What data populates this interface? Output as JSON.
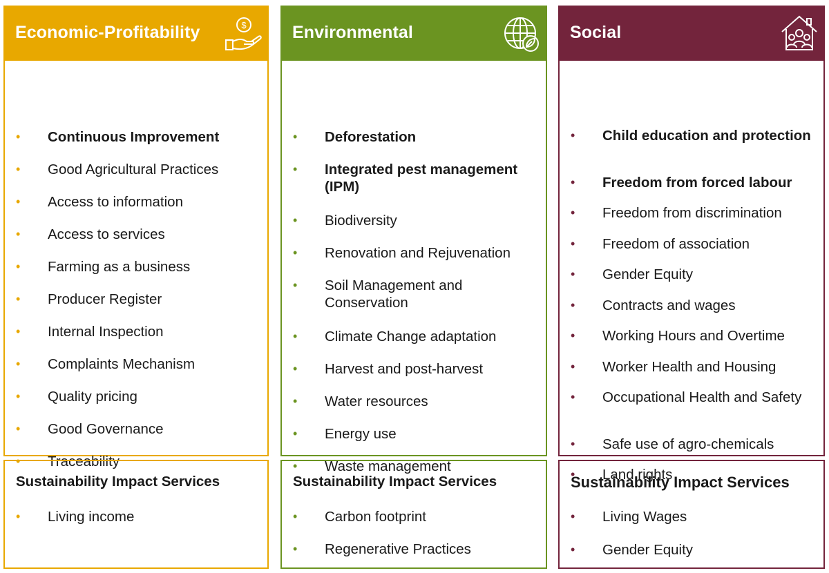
{
  "columns": [
    {
      "title": "Economic-Profitability",
      "color": "#e8a800",
      "icon": "money-hand-icon",
      "items": [
        {
          "text": "Continuous Improvement",
          "bold": true
        },
        {
          "text": "Good Agricultural Practices",
          "bold": false
        },
        {
          "text": "Access to information",
          "bold": false
        },
        {
          "text": "Access to services",
          "bold": false
        },
        {
          "text": "Farming as a business",
          "bold": false
        },
        {
          "text": "Producer Register",
          "bold": false
        },
        {
          "text": "Internal Inspection",
          "bold": false
        },
        {
          "text": "Complaints Mechanism",
          "bold": false
        },
        {
          "text": "Quality pricing",
          "bold": false
        },
        {
          "text": "Good Governance",
          "bold": false
        },
        {
          "text": "Traceability",
          "bold": false
        }
      ],
      "footer": {
        "title": "Sustainability Impact Services",
        "items": [
          "Living income"
        ]
      }
    },
    {
      "title": "Environmental",
      "color": "#6b9421",
      "icon": "globe-leaf-icon",
      "items": [
        {
          "text": "Deforestation",
          "bold": true
        },
        {
          "text": "Integrated pest management (IPM)",
          "bold": true
        },
        {
          "text": "Biodiversity",
          "bold": false
        },
        {
          "text": "Renovation and Rejuvenation",
          "bold": false
        },
        {
          "text": "Soil Management and Conservation",
          "bold": false
        },
        {
          "text": "Climate Change adaptation",
          "bold": false
        },
        {
          "text": "Harvest and post-harvest",
          "bold": false
        },
        {
          "text": "Water resources",
          "bold": false
        },
        {
          "text": "Energy use",
          "bold": false
        },
        {
          "text": "Waste management",
          "bold": false
        }
      ],
      "footer": {
        "title": "Sustainability Impact Services",
        "items": [
          "Carbon footprint",
          "Regenerative Practices"
        ]
      }
    },
    {
      "title": "Social",
      "color": "#73243c",
      "icon": "house-people-icon",
      "items": [
        {
          "text": "Child education and protection",
          "bold": true
        },
        {
          "text": "Freedom from forced labour",
          "bold": true
        },
        {
          "text": "Freedom from discrimination",
          "bold": false
        },
        {
          "text": "Freedom of association",
          "bold": false
        },
        {
          "text": "Gender Equity",
          "bold": false
        },
        {
          "text": "Contracts and wages",
          "bold": false
        },
        {
          "text": "Working Hours and Overtime",
          "bold": false
        },
        {
          "text": "Worker Health and Housing",
          "bold": false
        },
        {
          "text": "Occupational Health and Safety",
          "bold": false
        },
        {
          "text": "Safe use of agro-chemicals",
          "bold": false
        },
        {
          "text": "Land rights",
          "bold": false
        }
      ],
      "footer": {
        "title": "Sustainability Impact Services",
        "items": [
          "Living Wages",
          "Gender Equity"
        ]
      }
    }
  ]
}
